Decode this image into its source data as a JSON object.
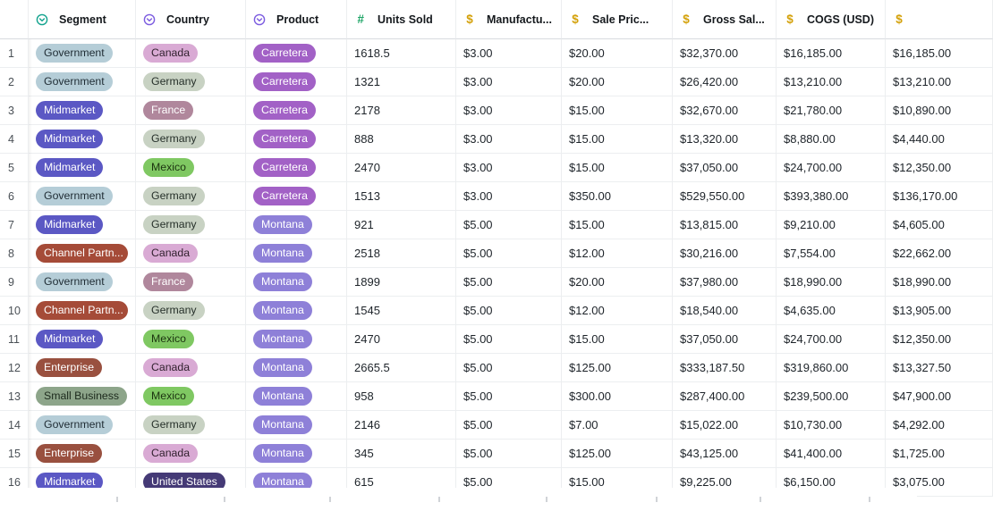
{
  "header": {
    "columns": [
      {
        "label": "Segment",
        "icon": "select",
        "icon_color": "#13a38e"
      },
      {
        "label": "Country",
        "icon": "select",
        "icon_color": "#7c5ce0"
      },
      {
        "label": "Product",
        "icon": "select",
        "icon_color": "#7c5ce0"
      },
      {
        "label": "Units Sold",
        "icon": "number",
        "icon_color": "#1fa567"
      },
      {
        "label": "Manufactu...",
        "icon": "currency",
        "icon_color": "#d4a10a"
      },
      {
        "label": "Sale Pric...",
        "icon": "currency",
        "icon_color": "#d4a10a"
      },
      {
        "label": "Gross Sal...",
        "icon": "currency",
        "icon_color": "#d4a10a"
      },
      {
        "label": "COGS (USD)",
        "icon": "currency",
        "icon_color": "#d4a10a"
      },
      {
        "label": "",
        "icon": "currency",
        "icon_color": "#d4a10a"
      }
    ]
  },
  "icons": {
    "select": "circle-chevron-down",
    "number": "#",
    "currency": "$"
  },
  "pill_colors": {
    "Government": {
      "bg": "#b5cdd7",
      "fg": "#1e2b33"
    },
    "Midmarket": {
      "bg": "#5b58c4",
      "fg": "#ffffff"
    },
    "Channel Partn...": {
      "bg": "#a54b38",
      "fg": "#ffffff"
    },
    "Enterprise": {
      "bg": "#99503f",
      "fg": "#ffffff"
    },
    "Small Business": {
      "bg": "#8da58a",
      "fg": "#1d2a1d"
    },
    "Canada": {
      "bg": "#d9aad4",
      "fg": "#31212e"
    },
    "Germany": {
      "bg": "#c8d2c3",
      "fg": "#26302a"
    },
    "France": {
      "bg": "#b0879c",
      "fg": "#ffffff"
    },
    "Mexico": {
      "bg": "#7fc862",
      "fg": "#1c3310"
    },
    "United States": {
      "bg": "#453a76",
      "fg": "#ffffff"
    },
    "Carretera": {
      "bg": "#a261c6",
      "fg": "#ffffff"
    },
    "Montana": {
      "bg": "#8e80d8",
      "fg": "#ffffff"
    }
  },
  "rows": [
    {
      "num": "1",
      "segment": "Government",
      "country": "Canada",
      "product": "Carretera",
      "units": "1618.5",
      "manufacturing": "$3.00",
      "sale": "$20.00",
      "gross": "$32,370.00",
      "cogs": "$16,185.00",
      "profit": "$16,185.00"
    },
    {
      "num": "2",
      "segment": "Government",
      "country": "Germany",
      "product": "Carretera",
      "units": "1321",
      "manufacturing": "$3.00",
      "sale": "$20.00",
      "gross": "$26,420.00",
      "cogs": "$13,210.00",
      "profit": "$13,210.00"
    },
    {
      "num": "3",
      "segment": "Midmarket",
      "country": "France",
      "product": "Carretera",
      "units": "2178",
      "manufacturing": "$3.00",
      "sale": "$15.00",
      "gross": "$32,670.00",
      "cogs": "$21,780.00",
      "profit": "$10,890.00"
    },
    {
      "num": "4",
      "segment": "Midmarket",
      "country": "Germany",
      "product": "Carretera",
      "units": "888",
      "manufacturing": "$3.00",
      "sale": "$15.00",
      "gross": "$13,320.00",
      "cogs": "$8,880.00",
      "profit": "$4,440.00"
    },
    {
      "num": "5",
      "segment": "Midmarket",
      "country": "Mexico",
      "product": "Carretera",
      "units": "2470",
      "manufacturing": "$3.00",
      "sale": "$15.00",
      "gross": "$37,050.00",
      "cogs": "$24,700.00",
      "profit": "$12,350.00"
    },
    {
      "num": "6",
      "segment": "Government",
      "country": "Germany",
      "product": "Carretera",
      "units": "1513",
      "manufacturing": "$3.00",
      "sale": "$350.00",
      "gross": "$529,550.00",
      "cogs": "$393,380.00",
      "profit": "$136,170.00"
    },
    {
      "num": "7",
      "segment": "Midmarket",
      "country": "Germany",
      "product": "Montana",
      "units": "921",
      "manufacturing": "$5.00",
      "sale": "$15.00",
      "gross": "$13,815.00",
      "cogs": "$9,210.00",
      "profit": "$4,605.00"
    },
    {
      "num": "8",
      "segment": "Channel Partn...",
      "country": "Canada",
      "product": "Montana",
      "units": "2518",
      "manufacturing": "$5.00",
      "sale": "$12.00",
      "gross": "$30,216.00",
      "cogs": "$7,554.00",
      "profit": "$22,662.00"
    },
    {
      "num": "9",
      "segment": "Government",
      "country": "France",
      "product": "Montana",
      "units": "1899",
      "manufacturing": "$5.00",
      "sale": "$20.00",
      "gross": "$37,980.00",
      "cogs": "$18,990.00",
      "profit": "$18,990.00"
    },
    {
      "num": "10",
      "segment": "Channel Partn...",
      "country": "Germany",
      "product": "Montana",
      "units": "1545",
      "manufacturing": "$5.00",
      "sale": "$12.00",
      "gross": "$18,540.00",
      "cogs": "$4,635.00",
      "profit": "$13,905.00"
    },
    {
      "num": "11",
      "segment": "Midmarket",
      "country": "Mexico",
      "product": "Montana",
      "units": "2470",
      "manufacturing": "$5.00",
      "sale": "$15.00",
      "gross": "$37,050.00",
      "cogs": "$24,700.00",
      "profit": "$12,350.00"
    },
    {
      "num": "12",
      "segment": "Enterprise",
      "country": "Canada",
      "product": "Montana",
      "units": "2665.5",
      "manufacturing": "$5.00",
      "sale": "$125.00",
      "gross": "$333,187.50",
      "cogs": "$319,860.00",
      "profit": "$13,327.50"
    },
    {
      "num": "13",
      "segment": "Small Business",
      "country": "Mexico",
      "product": "Montana",
      "units": "958",
      "manufacturing": "$5.00",
      "sale": "$300.00",
      "gross": "$287,400.00",
      "cogs": "$239,500.00",
      "profit": "$47,900.00"
    },
    {
      "num": "14",
      "segment": "Government",
      "country": "Germany",
      "product": "Montana",
      "units": "2146",
      "manufacturing": "$5.00",
      "sale": "$7.00",
      "gross": "$15,022.00",
      "cogs": "$10,730.00",
      "profit": "$4,292.00"
    },
    {
      "num": "15",
      "segment": "Enterprise",
      "country": "Canada",
      "product": "Montana",
      "units": "345",
      "manufacturing": "$5.00",
      "sale": "$125.00",
      "gross": "$43,125.00",
      "cogs": "$41,400.00",
      "profit": "$1,725.00"
    },
    {
      "num": "16",
      "segment": "Midmarket",
      "country": "United States",
      "product": "Montana",
      "units": "615",
      "manufacturing": "$5.00",
      "sale": "$15.00",
      "gross": "$9,225.00",
      "cogs": "$6,150.00",
      "profit": "$3,075.00"
    }
  ]
}
